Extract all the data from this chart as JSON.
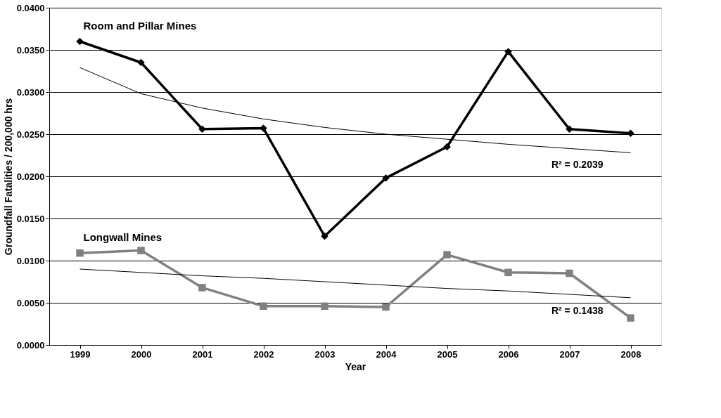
{
  "chart_data": {
    "type": "line",
    "xlabel": "Year",
    "ylabel": "Groundfall Fatalities / 200,000 hrs",
    "categories": [
      "1999",
      "2000",
      "2001",
      "2002",
      "2003",
      "2004",
      "2005",
      "2006",
      "2007",
      "2008"
    ],
    "series": [
      {
        "name": "Room and Pillar Mines",
        "color": "#000000",
        "marker": "diamond",
        "values": [
          0.036,
          0.0335,
          0.0256,
          0.0257,
          0.0129,
          0.0198,
          0.0235,
          0.0348,
          0.0256,
          0.0251
        ]
      },
      {
        "name": "Longwall Mines",
        "color": "#808080",
        "marker": "square",
        "values": [
          0.0109,
          0.0112,
          0.0068,
          0.0046,
          0.0046,
          0.0045,
          0.0107,
          0.0086,
          0.0085,
          0.0032
        ]
      },
      {
        "type": "line",
        "color": "#000000",
        "marker": "none",
        "values": [
          0.0329,
          0.0298,
          0.0281,
          0.0268,
          0.0258,
          0.025,
          0.0244,
          0.0238,
          0.0233,
          0.0228
        ]
      },
      {
        "type": "line",
        "color": "#000000",
        "marker": "none",
        "values": [
          0.009,
          0.0086,
          0.0082,
          0.0079,
          0.0075,
          0.0071,
          0.0067,
          0.0064,
          0.006,
          0.0056
        ]
      }
    ],
    "ylim": [
      0,
      0.04
    ],
    "yticks": [
      {
        "value": 0,
        "label": "0.0000"
      },
      {
        "value": 0.005,
        "label": "0.0050"
      },
      {
        "value": 0.01,
        "label": "0.0100"
      },
      {
        "value": 0.015,
        "label": "0.0150"
      },
      {
        "value": 0.02,
        "label": "0.0200"
      },
      {
        "value": 0.025,
        "label": "0.0250"
      },
      {
        "value": 0.03,
        "label": "0.0300"
      },
      {
        "value": 0.035,
        "label": "0.0350"
      },
      {
        "value": 0.04,
        "label": "0.0400"
      }
    ],
    "annotations": [
      "R² = 0.2039",
      "R² = 0.1438"
    ],
    "grid": "y"
  }
}
